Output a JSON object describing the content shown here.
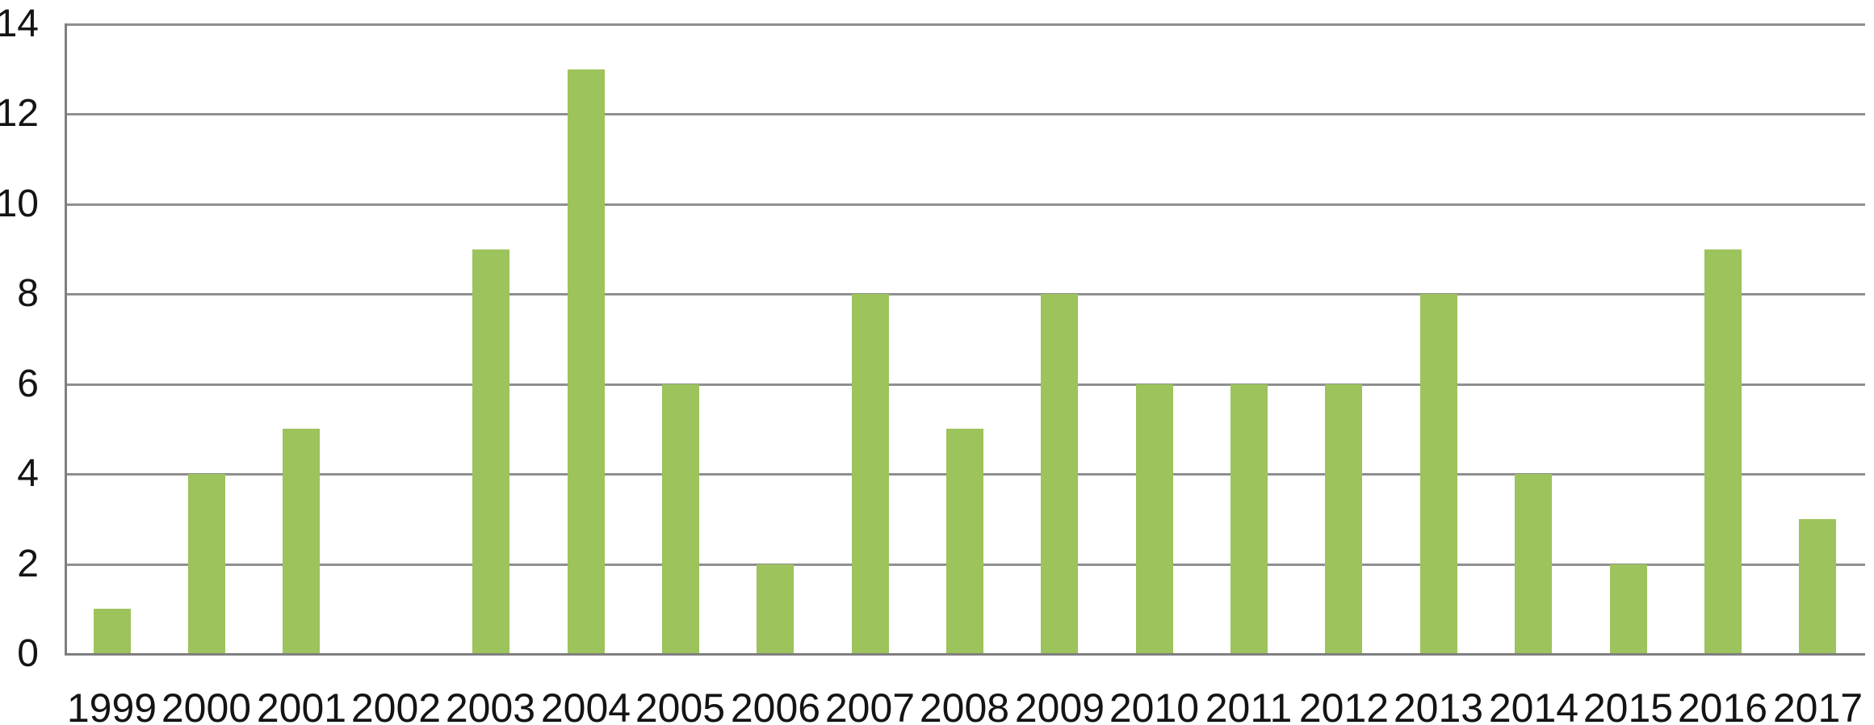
{
  "chart_data": {
    "type": "bar",
    "title": "",
    "xlabel": "",
    "ylabel": "",
    "categories": [
      "1999",
      "2000",
      "2001",
      "2002",
      "2003",
      "2004",
      "2005",
      "2006",
      "2007",
      "2008",
      "2009",
      "2010",
      "2011",
      "2012",
      "2013",
      "2014",
      "2015",
      "2016",
      "2017"
    ],
    "values": [
      1,
      4,
      5,
      0,
      9,
      13,
      6,
      2,
      8,
      5,
      8,
      6,
      6,
      6,
      8,
      4,
      2,
      9,
      3
    ],
    "ylim": [
      0,
      14
    ],
    "yticks": [
      0,
      2,
      4,
      6,
      8,
      10,
      12,
      14
    ],
    "grid": true,
    "legend": null,
    "colors": {
      "bar": "#9cc35c",
      "gridline": "#8f8f8f",
      "axis": "#7f7f7f",
      "text": "#141414",
      "background": "#ffffff"
    }
  }
}
